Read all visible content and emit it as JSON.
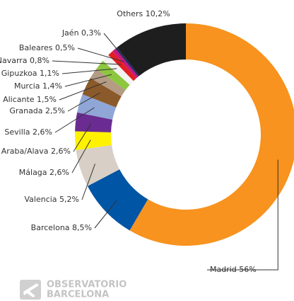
{
  "chart_data": {
    "type": "donut",
    "categories": [
      "Madrid",
      "Barcelona",
      "Valencia",
      "Málaga",
      "Araba/Alava",
      "Sevilla",
      "Granada",
      "Alicante",
      "Murcia",
      "Gipuzkoa",
      "Navarra",
      "Baleares",
      "Jaén",
      "Others"
    ],
    "values": [
      56,
      8.5,
      5.2,
      2.6,
      2.6,
      2.6,
      2.5,
      1.5,
      1.4,
      1.1,
      0.8,
      0.5,
      0.3,
      10.2
    ],
    "value_labels": [
      "56%",
      "8,5%",
      "5,2%",
      "2,6%",
      "2,6%",
      "2,6%",
      "2,5%",
      "1,5%",
      "1,4%",
      "1,1%",
      "0,8%",
      "0,5%",
      "0,3%",
      "10,2%"
    ],
    "colors": [
      "#f7931e",
      "#0055a5",
      "#d8cfc6",
      "#fff200",
      "#6a2c91",
      "#8fa6d6",
      "#8b5a2b",
      "#b39b84",
      "#8dc63f",
      "#f2f2f2",
      "#e31e24",
      "#c2187f",
      "#1f2a6b",
      "#1e1e1e"
    ],
    "logo": [
      "OBSERVATORIO",
      "BARCELONA"
    ]
  }
}
